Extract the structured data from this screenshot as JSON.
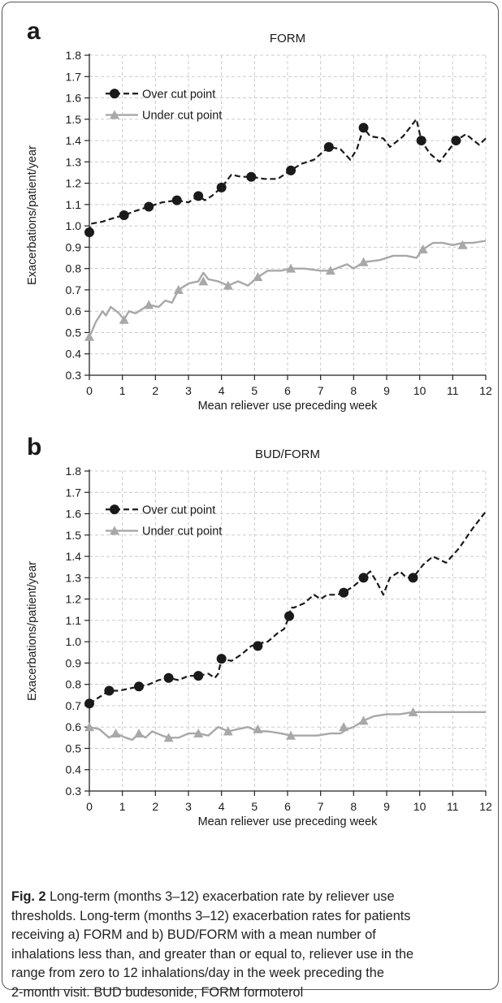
{
  "panels": {
    "a": {
      "letter": "a"
    },
    "b": {
      "letter": "b"
    }
  },
  "caption": {
    "lines": [
      "Long-term (months 3–12) exacerbation rate by reliever use",
      "thresholds. Long-term (months 3–12) exacerbation rates for patients",
      "receiving a) FORM and b) BUD/FORM with a mean number of",
      "inhalations less than, and greater than or equal to, reliever use in the",
      "range from zero to 12 inhalations/day in the week preceding the",
      "2-month visit. BUD budesonide, FORM formoterol"
    ],
    "fig_label": "Fig. 2"
  },
  "colors": {
    "over": "#1a1a1a",
    "under": "#a8a8a8",
    "grid": "#cccccc"
  },
  "chart_data": [
    {
      "type": "line",
      "panel": "a",
      "title": "FORM",
      "xlabel": "Mean reliever use preceding week",
      "ylabel": "Exacerbations/patient/year",
      "xlim": [
        0,
        12
      ],
      "ylim": [
        0.3,
        1.8
      ],
      "xticks": [
        "0",
        "1",
        "2",
        "3",
        "4",
        "5",
        "6",
        "7",
        "8",
        "9",
        "10",
        "11",
        "12"
      ],
      "yticks": [
        "0.3",
        "0.4",
        "0.5",
        "0.6",
        "0.7",
        "0.8",
        "0.9",
        "1.0",
        "1.1",
        "1.2",
        "1.3",
        "1.4",
        "1.5",
        "1.6",
        "1.7",
        "1.8"
      ],
      "grid": true,
      "legend_position": "top-left",
      "series": [
        {
          "name": "Over cut point",
          "style": "dashed-circle",
          "x": [
            0,
            0.05,
            0.4,
            0.8,
            1.05,
            1.4,
            1.8,
            2.2,
            2.65,
            3.0,
            3.3,
            3.5,
            3.7,
            4.0,
            4.3,
            4.6,
            4.9,
            5.3,
            5.7,
            6.1,
            6.4,
            6.8,
            7.25,
            7.6,
            7.9,
            8.1,
            8.3,
            8.5,
            8.9,
            9.1,
            9.5,
            9.9,
            10.05,
            10.3,
            10.6,
            10.9,
            11.1,
            11.4,
            11.8,
            12.0
          ],
          "y": [
            0.97,
            1.01,
            1.02,
            1.04,
            1.05,
            1.07,
            1.09,
            1.11,
            1.12,
            1.11,
            1.14,
            1.12,
            1.14,
            1.18,
            1.24,
            1.23,
            1.23,
            1.22,
            1.22,
            1.26,
            1.29,
            1.31,
            1.37,
            1.36,
            1.31,
            1.36,
            1.46,
            1.42,
            1.41,
            1.37,
            1.42,
            1.5,
            1.4,
            1.34,
            1.3,
            1.36,
            1.4,
            1.43,
            1.38,
            1.41
          ],
          "markers_x": [
            0,
            1.05,
            1.8,
            2.65,
            3.3,
            4.0,
            4.9,
            6.1,
            7.25,
            8.3,
            10.05,
            11.1
          ],
          "markers_y": [
            0.97,
            1.05,
            1.09,
            1.12,
            1.14,
            1.18,
            1.23,
            1.26,
            1.37,
            1.46,
            1.4,
            1.4
          ]
        },
        {
          "name": "Under cut point",
          "style": "solid-triangle",
          "x": [
            0,
            0.2,
            0.4,
            0.5,
            0.65,
            0.9,
            1.05,
            1.2,
            1.4,
            1.6,
            1.8,
            2.1,
            2.3,
            2.5,
            2.7,
            3.0,
            3.3,
            3.45,
            3.6,
            3.9,
            4.2,
            4.5,
            4.8,
            5.1,
            5.4,
            5.8,
            6.1,
            6.5,
            7.0,
            7.3,
            7.8,
            8.0,
            8.3,
            8.8,
            9.2,
            9.6,
            9.9,
            10.1,
            10.4,
            10.7,
            11.0,
            11.3,
            11.6,
            12.0
          ],
          "y": [
            0.48,
            0.55,
            0.6,
            0.58,
            0.62,
            0.59,
            0.56,
            0.6,
            0.59,
            0.61,
            0.63,
            0.62,
            0.65,
            0.64,
            0.7,
            0.73,
            0.74,
            0.78,
            0.75,
            0.74,
            0.72,
            0.74,
            0.72,
            0.76,
            0.79,
            0.79,
            0.8,
            0.8,
            0.79,
            0.79,
            0.82,
            0.8,
            0.83,
            0.84,
            0.86,
            0.86,
            0.85,
            0.89,
            0.92,
            0.92,
            0.91,
            0.92,
            0.92,
            0.93
          ],
          "markers_x": [
            0,
            1.05,
            1.8,
            2.7,
            3.45,
            4.2,
            5.1,
            6.1,
            7.3,
            8.3,
            10.1,
            11.3
          ],
          "markers_y": [
            0.48,
            0.56,
            0.63,
            0.7,
            0.74,
            0.72,
            0.76,
            0.8,
            0.79,
            0.83,
            0.89,
            0.91
          ]
        }
      ]
    },
    {
      "type": "line",
      "panel": "b",
      "title": "BUD/FORM",
      "xlabel": "Mean reliever use preceding week",
      "ylabel": "Exacerbations/patient/year",
      "xlim": [
        0,
        12
      ],
      "ylim": [
        0.3,
        1.8
      ],
      "xticks": [
        "0",
        "1",
        "2",
        "3",
        "4",
        "5",
        "6",
        "7",
        "8",
        "9",
        "10",
        "11",
        "12"
      ],
      "yticks": [
        "0.3",
        "0.4",
        "0.5",
        "0.6",
        "0.7",
        "0.8",
        "0.9",
        "1.0",
        "1.1",
        "1.2",
        "1.3",
        "1.4",
        "1.5",
        "1.6",
        "1.7",
        "1.8"
      ],
      "grid": true,
      "legend_position": "top-left",
      "series": [
        {
          "name": "Over cut point",
          "style": "dashed-circle",
          "x": [
            0,
            0.3,
            0.6,
            0.9,
            1.2,
            1.5,
            1.8,
            2.1,
            2.4,
            2.7,
            3.0,
            3.3,
            3.6,
            3.8,
            3.9,
            4.0,
            4.3,
            4.6,
            4.9,
            5.1,
            5.4,
            5.7,
            5.9,
            6.05,
            6.1,
            6.2,
            6.5,
            6.8,
            7.0,
            7.2,
            7.5,
            7.7,
            8.0,
            8.3,
            8.5,
            8.7,
            8.9,
            9.1,
            9.4,
            9.6,
            9.8,
            10.1,
            10.4,
            10.8,
            11.2,
            11.6,
            12.0
          ],
          "y": [
            0.71,
            0.74,
            0.77,
            0.77,
            0.78,
            0.79,
            0.8,
            0.82,
            0.83,
            0.82,
            0.84,
            0.84,
            0.85,
            0.83,
            0.85,
            0.92,
            0.91,
            0.94,
            0.98,
            0.99,
            1.0,
            1.04,
            1.06,
            1.12,
            1.16,
            1.16,
            1.18,
            1.22,
            1.2,
            1.22,
            1.22,
            1.23,
            1.26,
            1.3,
            1.33,
            1.28,
            1.22,
            1.3,
            1.33,
            1.3,
            1.3,
            1.36,
            1.4,
            1.37,
            1.44,
            1.53,
            1.61
          ],
          "markers_x": [
            0,
            0.6,
            1.5,
            2.4,
            3.3,
            4.0,
            5.1,
            6.05,
            7.7,
            8.3,
            9.8
          ],
          "markers_y": [
            0.71,
            0.77,
            0.79,
            0.83,
            0.84,
            0.92,
            0.98,
            1.12,
            1.23,
            1.3,
            1.3
          ]
        },
        {
          "name": "Under cut point",
          "style": "solid-triangle",
          "x": [
            0,
            0.3,
            0.6,
            0.8,
            1.1,
            1.3,
            1.5,
            1.7,
            1.9,
            2.2,
            2.4,
            2.7,
            3.0,
            3.3,
            3.6,
            3.9,
            4.2,
            4.5,
            4.8,
            5.1,
            5.4,
            5.8,
            6.1,
            6.5,
            6.9,
            7.3,
            7.6,
            7.8,
            8.0,
            8.3,
            8.6,
            9.0,
            9.4,
            9.8,
            10.2,
            10.6,
            11.0,
            11.5,
            12.0
          ],
          "y": [
            0.6,
            0.59,
            0.55,
            0.57,
            0.55,
            0.54,
            0.57,
            0.55,
            0.58,
            0.56,
            0.55,
            0.55,
            0.57,
            0.57,
            0.56,
            0.6,
            0.58,
            0.59,
            0.6,
            0.58,
            0.58,
            0.57,
            0.56,
            0.56,
            0.56,
            0.57,
            0.57,
            0.59,
            0.6,
            0.63,
            0.65,
            0.66,
            0.66,
            0.67,
            0.67,
            0.67,
            0.67,
            0.67,
            0.67
          ],
          "markers_x": [
            0,
            0.8,
            1.5,
            2.4,
            3.3,
            4.2,
            5.1,
            6.1,
            7.7,
            8.3,
            9.8
          ],
          "markers_y": [
            0.6,
            0.57,
            0.57,
            0.55,
            0.57,
            0.58,
            0.59,
            0.56,
            0.6,
            0.63,
            0.67
          ]
        }
      ]
    }
  ]
}
